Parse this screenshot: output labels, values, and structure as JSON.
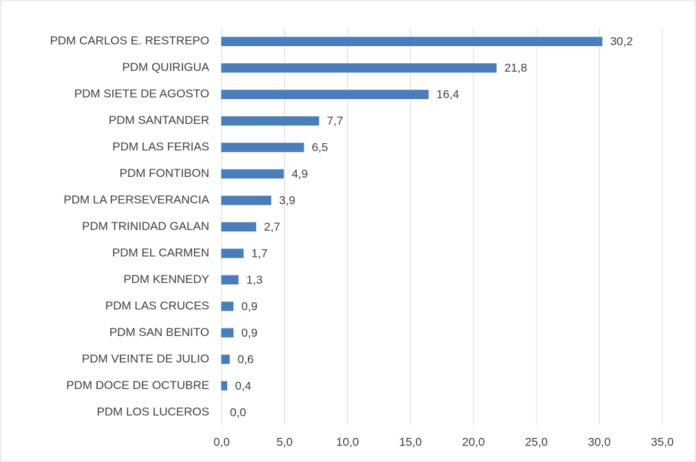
{
  "chart_data": {
    "type": "barh",
    "categories": [
      "PDM CARLOS E. RESTREPO",
      "PDM QUIRIGUA",
      "PDM SIETE DE AGOSTO",
      "PDM SANTANDER",
      "PDM LAS FERIAS",
      "PDM FONTIBON",
      "PDM LA PERSEVERANCIA",
      "PDM TRINIDAD GALAN",
      "PDM EL CARMEN",
      "PDM KENNEDY",
      "PDM LAS CRUCES",
      "PDM SAN BENITO",
      "PDM VEINTE DE JULIO",
      "PDM DOCE DE OCTUBRE",
      "PDM LOS LUCEROS"
    ],
    "values": [
      30.2,
      21.8,
      16.4,
      7.7,
      6.5,
      4.9,
      3.9,
      2.7,
      1.7,
      1.3,
      0.9,
      0.9,
      0.6,
      0.4,
      0.0
    ],
    "value_labels": [
      "30,2",
      "21,8",
      "16,4",
      "7,7",
      "6,5",
      "4,9",
      "3,9",
      "2,7",
      "1,7",
      "1,3",
      "0,9",
      "0,9",
      "0,6",
      "0,4",
      "0,0"
    ],
    "color": "#4a7ebb",
    "xlim": [
      0,
      35
    ],
    "xticks": [
      {
        "value": 0,
        "label": "0,0"
      },
      {
        "value": 5,
        "label": "5,0"
      },
      {
        "value": 10,
        "label": "10,0"
      },
      {
        "value": 15,
        "label": "15,0"
      },
      {
        "value": 20,
        "label": "20,0"
      },
      {
        "value": 25,
        "label": "25,0"
      },
      {
        "value": 30,
        "label": "30,0"
      },
      {
        "value": 35,
        "label": "35,0"
      }
    ],
    "grid": true
  }
}
